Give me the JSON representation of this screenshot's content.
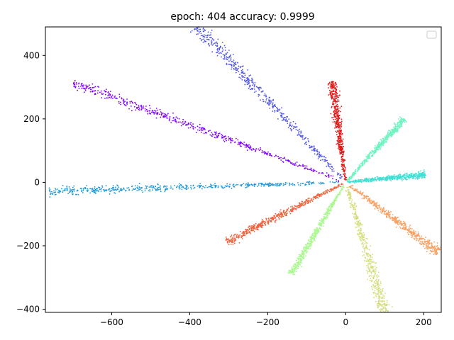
{
  "chart_data": {
    "type": "scatter",
    "title": "epoch: 404   accuracy: 0.9999",
    "xlabel": "",
    "ylabel": "",
    "xlim": [
      -770,
      245
    ],
    "ylim": [
      -410,
      490
    ],
    "xticks": [
      -600,
      -400,
      -200,
      0,
      200
    ],
    "yticks": [
      -400,
      -200,
      0,
      200,
      400
    ],
    "xtick_labels": [
      "−600",
      "−400",
      "−200",
      "0",
      "200"
    ],
    "ytick_labels": [
      "−400",
      "−200",
      "0",
      "200",
      "400"
    ],
    "grid": false,
    "legend": {
      "placement": "top-right",
      "entries": []
    },
    "series": [
      {
        "color": "#8000ff",
        "start": [
          0,
          0
        ],
        "end": [
          -700,
          315
        ],
        "spread": 6
      },
      {
        "color": "#4f55e8",
        "start": [
          0,
          0
        ],
        "end": [
          -380,
          490
        ],
        "spread": 7
      },
      {
        "color": "#1e96d9",
        "start": [
          0,
          0
        ],
        "end": [
          -760,
          -28
        ],
        "spread": 5
      },
      {
        "color": "#40dfd4",
        "start": [
          0,
          0
        ],
        "end": [
          205,
          25
        ],
        "spread": 4
      },
      {
        "color": "#6ff4c0",
        "start": [
          0,
          0
        ],
        "end": [
          150,
          200
        ],
        "spread": 4
      },
      {
        "color": "#a8f98c",
        "start": [
          0,
          0
        ],
        "end": [
          -140,
          -290
        ],
        "spread": 4
      },
      {
        "color": "#d4de7c",
        "start": [
          0,
          0
        ],
        "end": [
          100,
          -410
        ],
        "spread": 6
      },
      {
        "color": "#f9a062",
        "start": [
          0,
          0
        ],
        "end": [
          240,
          -222
        ],
        "spread": 6
      },
      {
        "color": "#f0603a",
        "start": [
          0,
          0
        ],
        "end": [
          -305,
          -188
        ],
        "spread": 5
      },
      {
        "color": "#e21a1a",
        "start": [
          0,
          0
        ],
        "end": [
          -35,
          318
        ],
        "spread": 5
      }
    ]
  }
}
